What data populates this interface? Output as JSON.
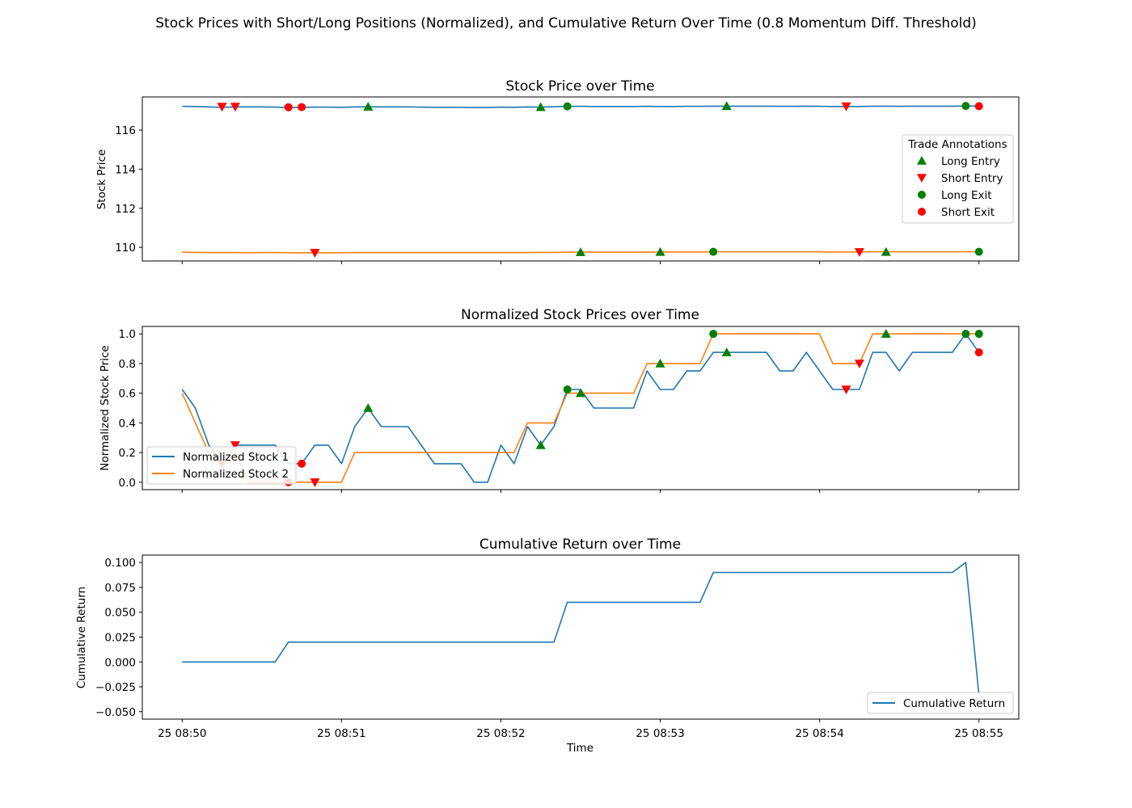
{
  "suptitle": "Stock Prices with Short/Long Positions (Normalized), and Cumulative Return Over Time (0.8 Momentum Diff. Threshold)",
  "xlabel": "Time",
  "x_ticks": [
    "25 08:50",
    "25 08:51",
    "25 08:52",
    "25 08:53",
    "25 08:54",
    "25 08:55"
  ],
  "colors": {
    "stock1": "#1f77b4",
    "stock2": "#ff7f0e",
    "long_marker": "#008000",
    "short_marker": "#ff0000",
    "return": "#1f77b4"
  },
  "chart_data": [
    {
      "type": "line",
      "title": "Stock Price over Time",
      "ylabel": "Stock Price",
      "xlabel": "",
      "x_unit": "minutes after 08:50",
      "xlim": [
        -0.25,
        5.25
      ],
      "ylim": [
        109.3,
        117.7
      ],
      "yticks": [
        "110",
        "112",
        "114",
        "116"
      ],
      "legend_title": "Trade Annotations",
      "legend_position": "center right",
      "legend": [
        "Long Entry",
        "Short Entry",
        "Long Exit",
        "Short Exit"
      ],
      "series": [
        {
          "key": "stock1",
          "x": [
            0,
            0.083,
            0.167,
            0.25,
            0.333,
            0.417,
            0.5,
            0.583,
            0.667,
            0.75,
            0.833,
            0.917,
            1.0,
            1.083,
            1.167,
            1.25,
            1.333,
            1.417,
            1.5,
            1.583,
            1.667,
            1.75,
            1.833,
            1.917,
            2.0,
            2.083,
            2.167,
            2.25,
            2.333,
            2.417,
            2.5,
            2.583,
            2.667,
            2.75,
            2.833,
            2.917,
            3.0,
            3.083,
            3.167,
            3.25,
            3.333,
            3.417,
            3.5,
            3.583,
            3.667,
            3.75,
            3.833,
            3.917,
            4.0,
            4.083,
            4.167,
            4.25,
            4.333,
            4.417,
            4.5,
            4.583,
            4.667,
            4.75,
            4.833,
            4.917,
            5.0
          ],
          "y": [
            117.22,
            117.21,
            117.19,
            117.17,
            117.19,
            117.19,
            117.19,
            117.18,
            117.16,
            117.17,
            117.18,
            117.18,
            117.17,
            117.19,
            117.2,
            117.19,
            117.19,
            117.19,
            117.18,
            117.17,
            117.17,
            117.17,
            117.16,
            117.16,
            117.18,
            117.17,
            117.19,
            117.18,
            117.2,
            117.22,
            117.22,
            117.21,
            117.21,
            117.21,
            117.21,
            117.22,
            117.21,
            117.21,
            117.22,
            117.22,
            117.23,
            117.23,
            117.23,
            117.23,
            117.23,
            117.22,
            117.22,
            117.23,
            117.22,
            117.21,
            117.21,
            117.21,
            117.23,
            117.23,
            117.22,
            117.23,
            117.23,
            117.23,
            117.23,
            117.24,
            117.23
          ]
        },
        {
          "key": "stock2",
          "x": [
            0,
            0.083,
            0.167,
            0.25,
            0.333,
            0.417,
            0.5,
            0.583,
            0.667,
            0.75,
            0.833,
            0.917,
            1.0,
            1.083,
            1.167,
            1.25,
            1.333,
            1.417,
            1.5,
            1.583,
            1.667,
            1.75,
            1.833,
            1.917,
            2.0,
            2.083,
            2.167,
            2.25,
            2.333,
            2.417,
            2.5,
            2.583,
            2.667,
            2.75,
            2.833,
            2.917,
            3.0,
            3.083,
            3.167,
            3.25,
            3.333,
            3.417,
            3.5,
            3.583,
            3.667,
            3.75,
            3.833,
            3.917,
            4.0,
            4.083,
            4.167,
            4.25,
            4.333,
            4.417,
            4.5,
            4.583,
            4.667,
            4.75,
            4.833,
            4.917,
            5.0
          ],
          "y": [
            109.75,
            109.74,
            109.73,
            109.73,
            109.73,
            109.72,
            109.73,
            109.73,
            109.72,
            109.72,
            109.72,
            109.72,
            109.72,
            109.73,
            109.73,
            109.73,
            109.73,
            109.73,
            109.73,
            109.73,
            109.73,
            109.73,
            109.73,
            109.73,
            109.73,
            109.73,
            109.73,
            109.74,
            109.74,
            109.75,
            109.75,
            109.75,
            109.75,
            109.75,
            109.75,
            109.75,
            109.76,
            109.76,
            109.76,
            109.76,
            109.77,
            109.77,
            109.77,
            109.77,
            109.77,
            109.77,
            109.77,
            109.77,
            109.77,
            109.76,
            109.76,
            109.76,
            109.77,
            109.77,
            109.77,
            109.77,
            109.77,
            109.77,
            109.77,
            109.77,
            109.77
          ]
        }
      ],
      "markers": [
        {
          "kind": "short_entry",
          "x": 0.25,
          "y": 117.2
        },
        {
          "kind": "short_entry",
          "x": 0.333,
          "y": 117.2
        },
        {
          "kind": "short_exit",
          "x": 0.667,
          "y": 117.17
        },
        {
          "kind": "short_exit",
          "x": 0.75,
          "y": 117.18
        },
        {
          "kind": "long_entry",
          "x": 1.167,
          "y": 117.2
        },
        {
          "kind": "long_entry",
          "x": 2.25,
          "y": 117.18
        },
        {
          "kind": "long_exit",
          "x": 2.417,
          "y": 117.22
        },
        {
          "kind": "long_entry",
          "x": 3.417,
          "y": 117.23
        },
        {
          "kind": "short_entry",
          "x": 4.167,
          "y": 117.22
        },
        {
          "kind": "long_exit",
          "x": 4.917,
          "y": 117.24
        },
        {
          "kind": "short_exit",
          "x": 5.0,
          "y": 117.23
        },
        {
          "kind": "short_entry",
          "x": 0.833,
          "y": 109.72
        },
        {
          "kind": "long_entry",
          "x": 2.5,
          "y": 109.75
        },
        {
          "kind": "long_entry",
          "x": 3.0,
          "y": 109.76
        },
        {
          "kind": "long_exit",
          "x": 3.333,
          "y": 109.77
        },
        {
          "kind": "short_entry",
          "x": 4.25,
          "y": 109.76
        },
        {
          "kind": "long_entry",
          "x": 4.417,
          "y": 109.76
        },
        {
          "kind": "long_exit",
          "x": 5.0,
          "y": 109.77
        }
      ]
    },
    {
      "type": "line",
      "title": "Normalized Stock Prices over Time",
      "ylabel": "Normalized Stock Price",
      "xlabel": "",
      "x_unit": "minutes after 08:50",
      "xlim": [
        -0.25,
        5.25
      ],
      "ylim": [
        -0.05,
        1.05
      ],
      "yticks": [
        "0.0",
        "0.2",
        "0.4",
        "0.6",
        "0.8",
        "1.0"
      ],
      "legend_position": "lower left",
      "legend": [
        "Normalized Stock 1",
        "Normalized Stock 2"
      ],
      "series": [
        {
          "key": "stock1",
          "name": "Normalized Stock 1",
          "x": [
            0,
            0.083,
            0.167,
            0.25,
            0.333,
            0.417,
            0.5,
            0.583,
            0.667,
            0.75,
            0.833,
            0.917,
            1.0,
            1.083,
            1.167,
            1.25,
            1.333,
            1.417,
            1.5,
            1.583,
            1.667,
            1.75,
            1.833,
            1.917,
            2.0,
            2.083,
            2.167,
            2.25,
            2.333,
            2.417,
            2.5,
            2.583,
            2.667,
            2.75,
            2.833,
            2.917,
            3.0,
            3.083,
            3.167,
            3.25,
            3.333,
            3.417,
            3.5,
            3.583,
            3.667,
            3.75,
            3.833,
            3.917,
            4.0,
            4.083,
            4.167,
            4.25,
            4.333,
            4.417,
            4.5,
            4.583,
            4.667,
            4.75,
            4.833,
            4.917,
            5.0
          ],
          "y": [
            0.625,
            0.5,
            0.25,
            0.125,
            0.25,
            0.25,
            0.25,
            0.25,
            0.125,
            0.125,
            0.25,
            0.25,
            0.125,
            0.375,
            0.5,
            0.375,
            0.375,
            0.375,
            0.25,
            0.125,
            0.125,
            0.125,
            0.0,
            0.0,
            0.25,
            0.125,
            0.375,
            0.25,
            0.375,
            0.625,
            0.625,
            0.5,
            0.5,
            0.5,
            0.5,
            0.75,
            0.625,
            0.625,
            0.75,
            0.75,
            0.875,
            0.875,
            0.875,
            0.875,
            0.875,
            0.75,
            0.75,
            0.875,
            0.75,
            0.625,
            0.625,
            0.625,
            0.875,
            0.875,
            0.75,
            0.875,
            0.875,
            0.875,
            0.875,
            1.0,
            0.875
          ]
        },
        {
          "key": "stock2",
          "name": "Normalized Stock 2",
          "x": [
            0,
            0.083,
            0.167,
            0.25,
            0.333,
            0.417,
            0.5,
            0.583,
            0.667,
            0.75,
            0.833,
            0.917,
            1.0,
            1.083,
            1.167,
            1.25,
            1.333,
            1.417,
            1.5,
            1.583,
            1.667,
            1.75,
            1.833,
            1.917,
            2.0,
            2.083,
            2.167,
            2.25,
            2.333,
            2.417,
            2.5,
            2.583,
            2.667,
            2.75,
            2.833,
            2.917,
            3.0,
            3.083,
            3.167,
            3.25,
            3.333,
            3.417,
            3.5,
            3.583,
            3.667,
            3.75,
            3.833,
            3.917,
            4.0,
            4.083,
            4.167,
            4.25,
            4.333,
            4.417,
            4.5,
            4.583,
            4.667,
            4.75,
            4.833,
            4.917,
            5.0
          ],
          "y": [
            0.6,
            0.4,
            0.2,
            0.2,
            0.2,
            0.0,
            0.0,
            0.0,
            0.0,
            0.0,
            0.0,
            0.0,
            0.0,
            0.2,
            0.2,
            0.2,
            0.2,
            0.2,
            0.2,
            0.2,
            0.2,
            0.2,
            0.2,
            0.2,
            0.2,
            0.2,
            0.4,
            0.4,
            0.4,
            0.6,
            0.6,
            0.6,
            0.6,
            0.6,
            0.6,
            0.8,
            0.8,
            0.8,
            0.8,
            0.8,
            1.0,
            1.0,
            1.0,
            1.0,
            1.0,
            1.0,
            1.0,
            1.0,
            1.0,
            0.8,
            0.8,
            0.8,
            1.0,
            1.0,
            1.0,
            1.0,
            1.0,
            1.0,
            1.0,
            1.0,
            1.0
          ]
        }
      ],
      "markers": [
        {
          "kind": "short_entry",
          "x": 0.25,
          "y": 0.125
        },
        {
          "kind": "short_entry",
          "x": 0.333,
          "y": 0.25
        },
        {
          "kind": "short_exit",
          "x": 0.667,
          "y": 0.0
        },
        {
          "kind": "short_exit",
          "x": 0.75,
          "y": 0.125
        },
        {
          "kind": "short_entry",
          "x": 0.833,
          "y": 0.0
        },
        {
          "kind": "long_entry",
          "x": 1.167,
          "y": 0.5
        },
        {
          "kind": "long_entry",
          "x": 2.25,
          "y": 0.25
        },
        {
          "kind": "long_exit",
          "x": 2.417,
          "y": 0.625
        },
        {
          "kind": "long_entry",
          "x": 2.5,
          "y": 0.6
        },
        {
          "kind": "long_entry",
          "x": 3.0,
          "y": 0.8
        },
        {
          "kind": "long_exit",
          "x": 3.333,
          "y": 1.0
        },
        {
          "kind": "long_entry",
          "x": 3.417,
          "y": 0.875
        },
        {
          "kind": "short_entry",
          "x": 4.167,
          "y": 0.625
        },
        {
          "kind": "short_entry",
          "x": 4.25,
          "y": 0.8
        },
        {
          "kind": "long_entry",
          "x": 4.417,
          "y": 1.0
        },
        {
          "kind": "long_exit",
          "x": 4.917,
          "y": 1.0
        },
        {
          "kind": "long_exit",
          "x": 5.0,
          "y": 1.0
        },
        {
          "kind": "short_exit",
          "x": 5.0,
          "y": 0.875
        }
      ]
    },
    {
      "type": "line",
      "title": "Cumulative Return over Time",
      "ylabel": "Cumulative Return",
      "xlabel": "Time",
      "x_unit": "minutes after 08:50",
      "xlim": [
        -0.25,
        5.25
      ],
      "ylim": [
        -0.0575,
        0.1075
      ],
      "yticks": [
        "0.100",
        "0.075",
        "0.050",
        "0.025",
        "0.000",
        "−0.025",
        "−0.050"
      ],
      "legend_position": "lower right",
      "legend": [
        "Cumulative Return"
      ],
      "series": [
        {
          "key": "return",
          "name": "Cumulative Return",
          "x": [
            0,
            0.583,
            0.667,
            2.333,
            2.417,
            3.25,
            3.333,
            4.833,
            4.917,
            5.0
          ],
          "y": [
            0.0,
            0.0,
            0.02,
            0.02,
            0.06,
            0.06,
            0.09,
            0.09,
            0.1,
            -0.033
          ]
        }
      ]
    }
  ]
}
